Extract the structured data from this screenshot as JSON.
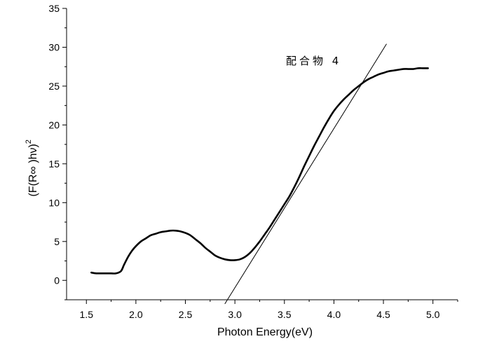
{
  "chart_data": {
    "type": "line",
    "title": "",
    "xlabel": "Photon Energy(eV)",
    "ylabel": "(F(R∞ )hν)",
    "ylabel_superscript": "2",
    "xlim": [
      1.3,
      5.25
    ],
    "ylim": [
      -2.5,
      35
    ],
    "xticks": [
      1.5,
      2.0,
      2.5,
      3.0,
      3.5,
      4.0,
      4.5,
      5.0
    ],
    "xtick_labels": [
      "1.5",
      "2.0",
      "2.5",
      "3.0",
      "3.5",
      "4.0",
      "4.5",
      "5.0"
    ],
    "yticks": [
      0,
      5,
      10,
      15,
      20,
      25,
      30,
      35
    ],
    "ytick_labels": [
      "0",
      "5",
      "10",
      "15",
      "20",
      "25",
      "30",
      "35"
    ],
    "grid": false,
    "annotation": "配合物 4",
    "series": [
      {
        "x": [
          1.55,
          1.6,
          1.65,
          1.7,
          1.75,
          1.8,
          1.85,
          1.88,
          1.92,
          1.96,
          2.0,
          2.05,
          2.1,
          2.15,
          2.2,
          2.25,
          2.3,
          2.35,
          2.4,
          2.45,
          2.5,
          2.55,
          2.6,
          2.65,
          2.7,
          2.75,
          2.8,
          2.85,
          2.9,
          2.95,
          3.0,
          3.05,
          3.1,
          3.15,
          3.2,
          3.25,
          3.3,
          3.35,
          3.4,
          3.45,
          3.5,
          3.55,
          3.6,
          3.65,
          3.7,
          3.75,
          3.8,
          3.85,
          3.9,
          3.95,
          4.0,
          4.05,
          4.1,
          4.15,
          4.2,
          4.25,
          4.3,
          4.35,
          4.4,
          4.45,
          4.5,
          4.55,
          4.6,
          4.65,
          4.7,
          4.75,
          4.8,
          4.85,
          4.9,
          4.95
        ],
        "values": [
          1.0,
          0.9,
          0.9,
          0.9,
          0.9,
          0.9,
          1.2,
          2.0,
          3.0,
          3.8,
          4.4,
          5.0,
          5.4,
          5.8,
          6.0,
          6.2,
          6.3,
          6.4,
          6.4,
          6.3,
          6.1,
          5.8,
          5.3,
          4.8,
          4.2,
          3.7,
          3.2,
          2.9,
          2.7,
          2.6,
          2.6,
          2.7,
          3.0,
          3.5,
          4.2,
          5.0,
          5.9,
          6.8,
          7.8,
          8.8,
          9.8,
          10.8,
          12.0,
          13.3,
          14.7,
          16.0,
          17.3,
          18.5,
          19.7,
          20.8,
          21.8,
          22.6,
          23.3,
          23.9,
          24.5,
          25.0,
          25.5,
          25.9,
          26.2,
          26.5,
          26.7,
          26.9,
          27.0,
          27.1,
          27.2,
          27.2,
          27.2,
          27.3,
          27.3,
          27.3
        ]
      },
      {
        "x": [
          2.9,
          4.53
        ],
        "values": [
          -3.0,
          30.4
        ]
      }
    ]
  }
}
